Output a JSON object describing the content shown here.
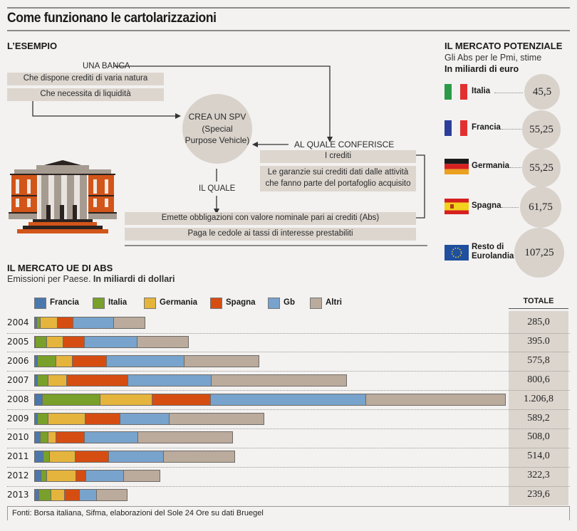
{
  "title": "Come funzionano le cartolarizzazioni",
  "example": {
    "heading": "L’ESEMPIO",
    "bank_label": "UNA BANCA",
    "bank_boxes": [
      "Che dispone crediti di varia natura",
      "Che necessita di liquidità"
    ],
    "spv": [
      "CREA UN SPV",
      "(Special",
      "Purpose Vehicle)"
    ],
    "conferisce_label": "AL QUALE CONFERISCE",
    "conferisce_boxes": [
      "I crediti",
      "Le garanzie sui crediti dati dalle attività",
      "che fanno parte del portafoglio acquisito"
    ],
    "il_quale_label": "IL QUALE",
    "spv_boxes": [
      "Emette obbligazioni con valore nominale pari ai crediti (Abs)",
      "Paga le cedole ai tassi di interesse prestabiliti"
    ]
  },
  "potential": {
    "heading": "IL MERCATO POTENZIALE",
    "subtitle": "Gli Abs per le Pmi, stime",
    "unit": "In miliardi di euro",
    "items": [
      {
        "country": "Italia",
        "value": "45,5",
        "flag": "italy-flag"
      },
      {
        "country": "Francia",
        "value": "55,25",
        "flag": "france-flag"
      },
      {
        "country": "Germania",
        "value": "55,25",
        "flag": "germany-flag"
      },
      {
        "country": "Spagna",
        "value": "61,75",
        "flag": "spain-flag"
      },
      {
        "country": "Resto di",
        "country2": "Eurolandia",
        "value": "107,25",
        "flag": "eu-flag"
      }
    ]
  },
  "chart_data": {
    "type": "bar",
    "orientation": "horizontal-stacked",
    "title": "IL MERCATO UE DI ABS",
    "subtitle": "Emissioni per Paese.",
    "unit": "In miliardi di dollari",
    "totals_header": "TOTALE",
    "legend_position": "top",
    "categories": [
      "2004",
      "2005",
      "2006",
      "2007",
      "2008",
      "2009",
      "2010",
      "2011",
      "2012",
      "2013"
    ],
    "series": [
      {
        "name": "Francia",
        "color": "#4a78ad",
        "values": [
          8,
          4,
          10,
          9,
          21,
          10,
          17,
          23,
          18,
          13
        ]
      },
      {
        "name": "Italia",
        "color": "#78a02a",
        "values": [
          9,
          29,
          46,
          27,
          148,
          26,
          19,
          17,
          15,
          30
        ]
      },
      {
        "name": "Germania",
        "color": "#e5b43c",
        "values": [
          43,
          42,
          42,
          47,
          134,
          95,
          21,
          66,
          75,
          35
        ]
      },
      {
        "name": "Spagna",
        "color": "#d64d12",
        "values": [
          41,
          54,
          87,
          158,
          149,
          89,
          73,
          86,
          25,
          38
        ]
      },
      {
        "name": "Gb",
        "color": "#78a3cc",
        "values": [
          103,
          135,
          199,
          213,
          397,
          126,
          136,
          140,
          97,
          45
        ]
      },
      {
        "name": "Altri",
        "color": "#bbab9c",
        "values": [
          81,
          131,
          191,
          346,
          358,
          243,
          243,
          183,
          92,
          79
        ]
      }
    ],
    "totals": [
      285.0,
      395.0,
      575.8,
      800.6,
      1206.8,
      589.2,
      508.0,
      514.0,
      322.3,
      239.6
    ],
    "totals_labels": [
      "285,0",
      "395.0",
      "575,8",
      "800,6",
      "1.206,8",
      "589,2",
      "508,0",
      "514,0",
      "322,3",
      "239,6"
    ],
    "xlim": [
      0,
      1206.8
    ],
    "grid": false
  },
  "source": "Fonti: Borsa italiana, Sifma, elaborazioni del Sole 24 Ore su dati Bruegel"
}
